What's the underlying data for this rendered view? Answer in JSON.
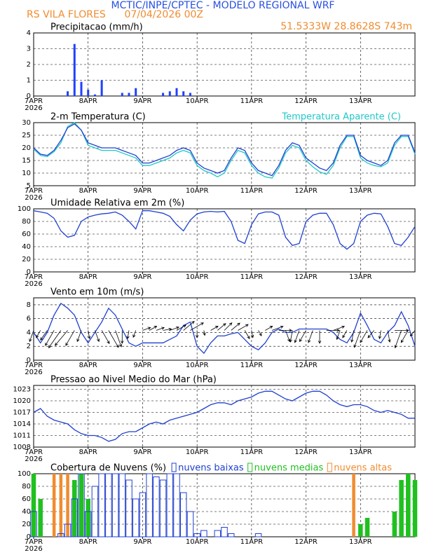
{
  "header": {
    "title": "MCTIC/INPE/CPTEC - MODELO REGIONAL WRF",
    "station": "RS VILA FLORES      07/04/2026 00Z",
    "location": "51.5333W 28.8628S 743m"
  },
  "chart_data": [
    {
      "type": "bar",
      "title": "Precipitacao (mm/h)",
      "year": "2026",
      "xlim": [
        0,
        168
      ],
      "xticks": [
        {
          "value": 0,
          "label": "7APR"
        },
        {
          "value": 24,
          "label": "8APR"
        },
        {
          "value": 48,
          "label": "9APR"
        },
        {
          "value": 72,
          "label": "10APR"
        },
        {
          "value": 96,
          "label": "11APR"
        },
        {
          "value": 120,
          "label": "12APR"
        },
        {
          "value": 144,
          "label": "13APR"
        }
      ],
      "ylim": [
        0,
        4
      ],
      "yticks": [
        0,
        1,
        2,
        3,
        4
      ],
      "grid": true,
      "x": [
        0,
        3,
        6,
        9,
        12,
        15,
        18,
        21,
        24,
        27,
        30,
        33,
        36,
        39,
        42,
        45,
        48,
        51,
        54,
        57,
        60,
        63,
        66,
        69,
        72,
        75,
        78,
        81,
        84,
        87,
        90,
        93,
        96,
        99,
        102,
        105,
        108,
        111,
        114,
        117,
        120,
        123,
        126,
        129,
        132,
        135,
        138,
        141,
        144,
        147,
        150,
        153,
        156,
        159,
        162,
        165,
        168
      ],
      "series": [
        {
          "color": "#2040ff",
          "values": [
            0,
            0,
            0,
            0,
            0,
            0.3,
            3.3,
            0.9,
            0.4,
            0.1,
            1.0,
            0,
            0,
            0.2,
            0.2,
            0.5,
            0,
            0,
            0,
            0.2,
            0.3,
            0.5,
            0.3,
            0.2,
            0,
            0,
            0,
            0,
            0,
            0,
            0,
            0,
            0,
            0,
            0,
            0,
            0,
            0,
            0,
            0,
            0,
            0,
            0,
            0,
            0,
            0,
            0,
            0,
            0,
            0,
            0,
            0,
            0,
            0,
            0,
            0,
            0
          ]
        }
      ]
    },
    {
      "type": "line",
      "title": "2-m Temperatura (C)",
      "year": "2026",
      "xlim": [
        0,
        168
      ],
      "legend": "top-right",
      "xticks": [
        {
          "value": 0,
          "label": "7APR"
        },
        {
          "value": 24,
          "label": "8APR"
        },
        {
          "value": 48,
          "label": "9APR"
        },
        {
          "value": 72,
          "label": "10APR"
        },
        {
          "value": 96,
          "label": "11APR"
        },
        {
          "value": 120,
          "label": "12APR"
        },
        {
          "value": 144,
          "label": "13APR"
        }
      ],
      "ylim": [
        5,
        30
      ],
      "yticks": [
        5,
        10,
        15,
        20,
        25,
        30
      ],
      "grid": true,
      "x": [
        0,
        3,
        6,
        9,
        12,
        15,
        18,
        21,
        24,
        27,
        30,
        33,
        36,
        39,
        42,
        45,
        48,
        51,
        54,
        57,
        60,
        63,
        66,
        69,
        72,
        75,
        78,
        81,
        84,
        87,
        90,
        93,
        96,
        99,
        102,
        105,
        108,
        111,
        114,
        117,
        120,
        123,
        126,
        129,
        132,
        135,
        138,
        141,
        144,
        147,
        150,
        153,
        156,
        159,
        162,
        165,
        168
      ],
      "series": [
        {
          "name": "Temperatura Aparente (C)",
          "color": "#20c8c8",
          "values": [
            19.5,
            17,
            16.5,
            18.5,
            22,
            28.5,
            30,
            27,
            21,
            20,
            19,
            19,
            19,
            18,
            17,
            16,
            13,
            13,
            14,
            15,
            16,
            18,
            19,
            18,
            13,
            11,
            10,
            8.5,
            10,
            15,
            19,
            18,
            13,
            10,
            8.5,
            8,
            12,
            18,
            21,
            20,
            15,
            12.5,
            10.5,
            9.5,
            13,
            20,
            24.5,
            24.5,
            16,
            14,
            13,
            12.5,
            14,
            21,
            24.5,
            24.5,
            17.5
          ]
        },
        {
          "color": "#2040d0",
          "values": [
            20,
            17.5,
            17,
            19,
            23,
            28,
            29.5,
            27,
            22,
            21,
            20,
            20,
            20,
            19,
            18,
            17,
            14,
            14,
            15,
            16,
            17,
            19,
            20,
            19,
            14,
            12,
            11,
            10,
            11,
            16,
            20,
            19,
            14,
            11,
            10,
            9,
            13,
            19,
            22,
            21,
            16,
            14,
            12,
            11,
            14,
            21,
            25,
            25,
            17,
            15,
            14,
            13,
            15,
            22,
            25,
            25,
            18
          ]
        }
      ]
    },
    {
      "type": "line",
      "title": "Umidade Relativa em 2m (%)",
      "year": "2026",
      "xlim": [
        0,
        168
      ],
      "xticks": [
        {
          "value": 0,
          "label": "7APR"
        },
        {
          "value": 24,
          "label": "8APR"
        },
        {
          "value": 48,
          "label": "9APR"
        },
        {
          "value": 72,
          "label": "10APR"
        },
        {
          "value": 96,
          "label": "11APR"
        },
        {
          "value": 120,
          "label": "12APR"
        },
        {
          "value": 144,
          "label": "13APR"
        }
      ],
      "ylim": [
        0,
        100
      ],
      "yticks": [
        0,
        20,
        40,
        60,
        80,
        100
      ],
      "grid": true,
      "x": [
        0,
        3,
        6,
        9,
        12,
        15,
        18,
        21,
        24,
        27,
        30,
        33,
        36,
        39,
        42,
        45,
        48,
        51,
        54,
        57,
        60,
        63,
        66,
        69,
        72,
        75,
        78,
        81,
        84,
        87,
        90,
        93,
        96,
        99,
        102,
        105,
        108,
        111,
        114,
        117,
        120,
        123,
        126,
        129,
        132,
        135,
        138,
        141,
        144,
        147,
        150,
        153,
        156,
        159,
        162,
        165,
        168
      ],
      "series": [
        {
          "color": "#2040d0",
          "values": [
            97,
            95,
            93,
            85,
            65,
            55,
            58,
            80,
            87,
            90,
            92,
            93,
            95,
            90,
            80,
            68,
            97,
            97,
            95,
            93,
            88,
            75,
            65,
            82,
            92,
            95,
            96,
            95,
            96,
            80,
            50,
            45,
            75,
            92,
            95,
            95,
            90,
            55,
            42,
            45,
            80,
            90,
            93,
            93,
            75,
            45,
            36,
            45,
            80,
            90,
            93,
            92,
            72,
            45,
            42,
            55,
            72
          ]
        }
      ]
    },
    {
      "type": "line",
      "title": "Vento em 10m (m/s)",
      "year": "2026",
      "xlim": [
        0,
        168
      ],
      "xticks": [
        {
          "value": 0,
          "label": "7APR"
        },
        {
          "value": 24,
          "label": "8APR"
        },
        {
          "value": 48,
          "label": "9APR"
        },
        {
          "value": 72,
          "label": "10APR"
        },
        {
          "value": 96,
          "label": "11APR"
        },
        {
          "value": 120,
          "label": "12APR"
        },
        {
          "value": 144,
          "label": "13APR"
        }
      ],
      "ylim": [
        0,
        9
      ],
      "yticks": [
        0,
        2,
        4,
        6,
        8
      ],
      "grid": true,
      "x": [
        0,
        3,
        6,
        9,
        12,
        15,
        18,
        21,
        24,
        27,
        30,
        33,
        36,
        39,
        42,
        45,
        48,
        51,
        54,
        57,
        60,
        63,
        66,
        69,
        72,
        75,
        78,
        81,
        84,
        87,
        90,
        93,
        96,
        99,
        102,
        105,
        108,
        111,
        114,
        117,
        120,
        123,
        126,
        129,
        132,
        135,
        138,
        141,
        144,
        147,
        150,
        153,
        156,
        159,
        162,
        165,
        168
      ],
      "series": [
        {
          "color": "#2040d0",
          "values": [
            4,
            2.5,
            4,
            6.5,
            8.2,
            7.5,
            6.5,
            4,
            2.5,
            4,
            5.5,
            7.5,
            6.5,
            4.5,
            2.5,
            2,
            2.5,
            2.5,
            2.5,
            2.5,
            3,
            3.5,
            5,
            5.5,
            2,
            1,
            2.5,
            3.5,
            3.5,
            3.8,
            4,
            3,
            2,
            1.5,
            2.5,
            4,
            4.5,
            4,
            4,
            4.5,
            4.5,
            4.5,
            4.5,
            4.5,
            4,
            3,
            2.5,
            4,
            6.8,
            5,
            3,
            2.5,
            4,
            5,
            7,
            5,
            2
          ]
        }
      ],
      "direction": [
        250,
        240,
        235,
        240,
        235,
        230,
        240,
        250,
        280,
        290,
        300,
        300,
        290,
        270,
        260,
        250,
        20,
        30,
        20,
        10,
        20,
        30,
        40,
        30,
        270,
        280,
        30,
        40,
        45,
        40,
        30,
        300,
        280,
        300,
        30,
        20,
        0,
        290,
        260,
        250,
        240,
        250,
        270,
        0,
        20,
        250,
        240,
        260,
        250,
        240,
        230,
        260,
        280,
        0,
        250,
        240,
        230
      ]
    },
    {
      "type": "line",
      "title": "Pressao ao Nivel Medio do Mar (hPa)",
      "year": "2026",
      "xlim": [
        0,
        168
      ],
      "xticks": [
        {
          "value": 0,
          "label": "7APR"
        },
        {
          "value": 24,
          "label": "8APR"
        },
        {
          "value": 48,
          "label": "9APR"
        },
        {
          "value": 72,
          "label": "10APR"
        },
        {
          "value": 96,
          "label": "11APR"
        },
        {
          "value": 120,
          "label": "12APR"
        },
        {
          "value": 144,
          "label": "13APR"
        }
      ],
      "ylim": [
        1008,
        1024
      ],
      "yticks": [
        1008,
        1011,
        1014,
        1017,
        1020,
        1023
      ],
      "grid": true,
      "x": [
        0,
        3,
        6,
        9,
        12,
        15,
        18,
        21,
        24,
        27,
        30,
        33,
        36,
        39,
        42,
        45,
        48,
        51,
        54,
        57,
        60,
        63,
        66,
        69,
        72,
        75,
        78,
        81,
        84,
        87,
        90,
        93,
        96,
        99,
        102,
        105,
        108,
        111,
        114,
        117,
        120,
        123,
        126,
        129,
        132,
        135,
        138,
        141,
        144,
        147,
        150,
        153,
        156,
        159,
        162,
        165,
        168
      ],
      "series": [
        {
          "color": "#2040d0",
          "values": [
            1017,
            1018,
            1016,
            1015,
            1014.5,
            1014,
            1012.5,
            1011.5,
            1011,
            1011,
            1010.5,
            1009.5,
            1010,
            1011.5,
            1012,
            1012,
            1013,
            1014,
            1014.5,
            1014,
            1015,
            1015.5,
            1016,
            1016.5,
            1017,
            1018,
            1019,
            1019.5,
            1019.5,
            1019,
            1020,
            1020.5,
            1021,
            1022,
            1022.5,
            1022.5,
            1021.5,
            1020.5,
            1020,
            1021,
            1022,
            1022.5,
            1022.5,
            1021.5,
            1020,
            1019,
            1018.5,
            1019,
            1019,
            1018.5,
            1017.5,
            1017,
            1017.5,
            1017,
            1016.5,
            1015.5,
            1015.5
          ]
        }
      ]
    },
    {
      "type": "bar",
      "title": "Cobertura de Nuvens (%)",
      "year": "2026",
      "xlim": [
        0,
        168
      ],
      "legend": "top-inline",
      "xticks": [
        {
          "value": 0,
          "label": "7APR"
        },
        {
          "value": 24,
          "label": "8APR"
        },
        {
          "value": 48,
          "label": "9APR"
        },
        {
          "value": 72,
          "label": "10APR"
        },
        {
          "value": 96,
          "label": "11APR"
        },
        {
          "value": 120,
          "label": "12APR"
        },
        {
          "value": 144,
          "label": "13APR"
        }
      ],
      "ylim": [
        0,
        100
      ],
      "yticks": [
        0,
        20,
        40,
        60,
        80,
        100
      ],
      "grid": true,
      "x": [
        0,
        3,
        6,
        9,
        12,
        15,
        18,
        21,
        24,
        27,
        30,
        33,
        36,
        39,
        42,
        45,
        48,
        51,
        54,
        57,
        60,
        63,
        66,
        69,
        72,
        75,
        78,
        81,
        84,
        87,
        90,
        93,
        96,
        99,
        102,
        105,
        108,
        111,
        114,
        117,
        120,
        123,
        126,
        129,
        132,
        135,
        138,
        141,
        144,
        147,
        150,
        153,
        156,
        159,
        162,
        165,
        168
      ],
      "series": [
        {
          "name": "nuvens baixas",
          "color": "#2040d0",
          "style": "outline",
          "values": [
            40,
            0,
            0,
            0,
            5,
            20,
            60,
            100,
            40,
            80,
            100,
            100,
            100,
            100,
            90,
            60,
            70,
            100,
            95,
            90,
            100,
            100,
            70,
            40,
            5,
            10,
            0,
            10,
            15,
            5,
            0,
            0,
            0,
            5,
            0,
            0,
            0,
            0,
            0,
            0,
            0,
            0,
            0,
            0,
            0,
            0,
            0,
            0,
            0,
            0,
            0,
            0,
            0,
            0,
            0,
            0,
            0
          ]
        },
        {
          "name": "nuvens medias",
          "color": "#20c020",
          "style": "fill",
          "values": [
            100,
            60,
            0,
            0,
            0,
            0,
            90,
            100,
            60,
            0,
            0,
            0,
            0,
            0,
            0,
            0,
            0,
            0,
            0,
            0,
            0,
            0,
            0,
            0,
            0,
            0,
            0,
            0,
            0,
            0,
            0,
            0,
            0,
            0,
            0,
            0,
            0,
            0,
            0,
            0,
            0,
            0,
            0,
            0,
            0,
            0,
            0,
            0,
            20,
            30,
            0,
            0,
            0,
            40,
            90,
            100,
            90
          ]
        },
        {
          "name": "nuvens altas",
          "color": "#f08c30",
          "style": "fill",
          "values": [
            40,
            0,
            0,
            100,
            100,
            100,
            60,
            40,
            0,
            0,
            0,
            0,
            0,
            0,
            0,
            0,
            0,
            0,
            0,
            0,
            0,
            0,
            0,
            0,
            0,
            0,
            0,
            0,
            0,
            0,
            0,
            0,
            0,
            0,
            0,
            0,
            0,
            0,
            0,
            0,
            0,
            0,
            0,
            0,
            0,
            0,
            0,
            100,
            20,
            0,
            0,
            0,
            0,
            0,
            60,
            100,
            50
          ]
        }
      ]
    }
  ]
}
